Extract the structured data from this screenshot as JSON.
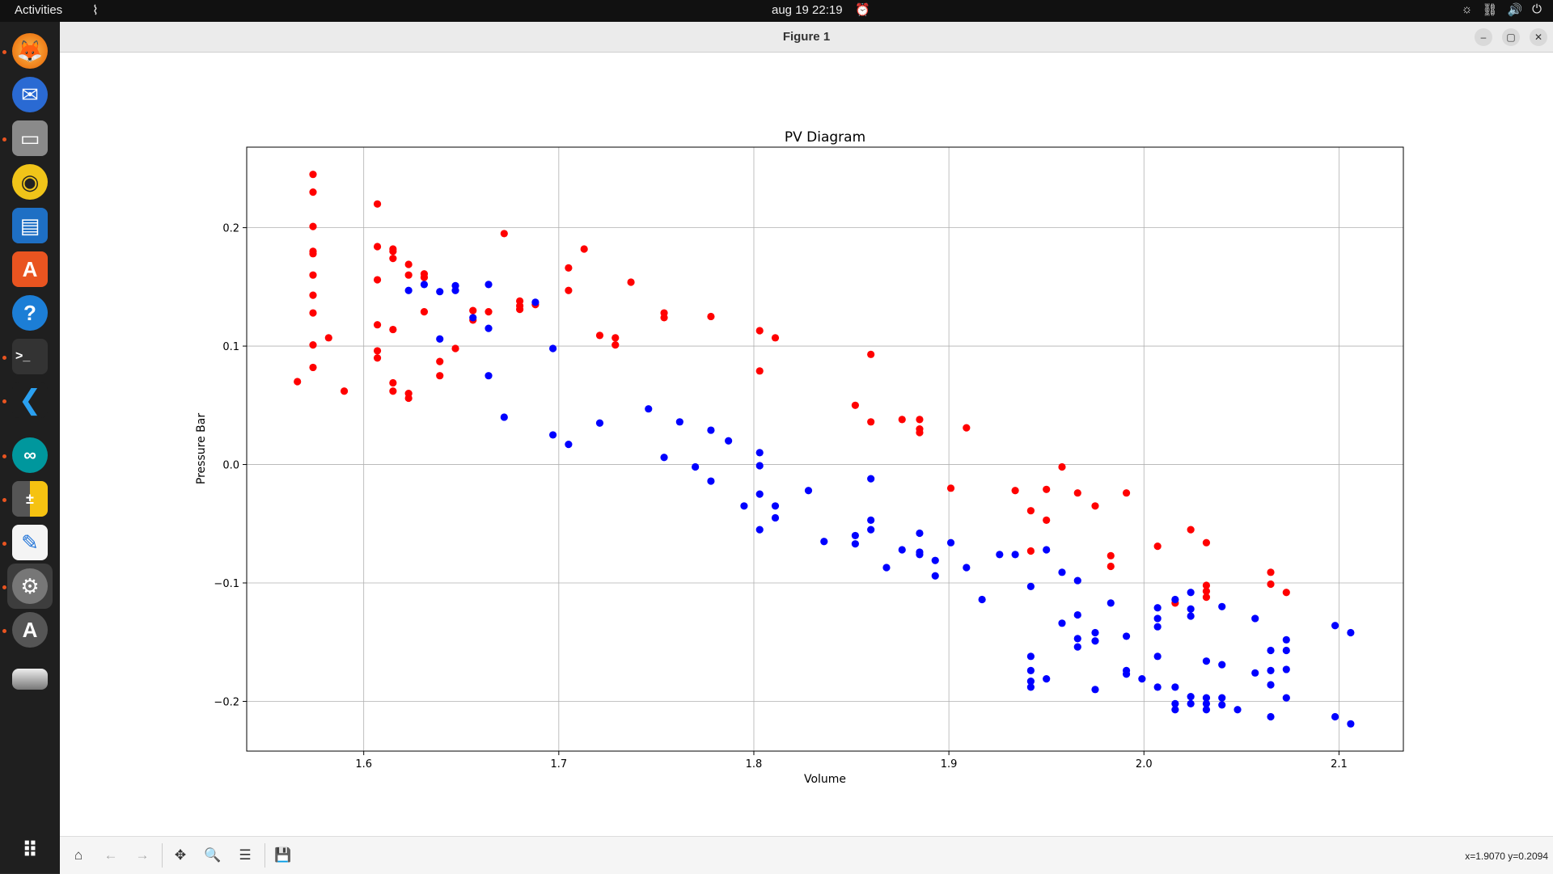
{
  "topbar": {
    "activities": "Activities",
    "clock": "aug 19  22:19"
  },
  "window": {
    "title": "Figure 1"
  },
  "statusbar": {
    "coords": "x=1.9070 y=0.2094"
  },
  "chart_data": {
    "type": "scatter",
    "title": "PV Diagram",
    "xlabel": "Volume",
    "ylabel": "Pressure Bar",
    "xlim": [
      1.54,
      2.133
    ],
    "ylim": [
      -0.242,
      0.268
    ],
    "grid": true,
    "xticks": [
      1.6,
      1.7,
      1.8,
      1.9,
      2.0,
      2.1
    ],
    "xtick_labels": [
      "1.6",
      "1.7",
      "1.8",
      "1.9",
      "2.0",
      "2.1"
    ],
    "yticks": [
      -0.2,
      -0.1,
      0.0,
      0.1,
      0.2
    ],
    "ytick_labels": [
      "−0.2",
      "−0.1",
      "0.0",
      "0.1",
      "0.2"
    ],
    "series": [
      {
        "color": "#ff0000",
        "points": [
          [
            1.566,
            0.07
          ],
          [
            1.574,
            0.245
          ],
          [
            1.574,
            0.23
          ],
          [
            1.574,
            0.201
          ],
          [
            1.574,
            0.18
          ],
          [
            1.574,
            0.178
          ],
          [
            1.574,
            0.16
          ],
          [
            1.574,
            0.143
          ],
          [
            1.574,
            0.128
          ],
          [
            1.574,
            0.101
          ],
          [
            1.574,
            0.082
          ],
          [
            1.582,
            0.107
          ],
          [
            1.59,
            0.062
          ],
          [
            1.607,
            0.22
          ],
          [
            1.607,
            0.184
          ],
          [
            1.607,
            0.156
          ],
          [
            1.607,
            0.118
          ],
          [
            1.607,
            0.096
          ],
          [
            1.607,
            0.09
          ],
          [
            1.615,
            0.182
          ],
          [
            1.615,
            0.18
          ],
          [
            1.615,
            0.174
          ],
          [
            1.615,
            0.114
          ],
          [
            1.615,
            0.069
          ],
          [
            1.615,
            0.062
          ],
          [
            1.623,
            0.169
          ],
          [
            1.623,
            0.16
          ],
          [
            1.623,
            0.06
          ],
          [
            1.623,
            0.056
          ],
          [
            1.631,
            0.161
          ],
          [
            1.631,
            0.158
          ],
          [
            1.631,
            0.129
          ],
          [
            1.639,
            0.087
          ],
          [
            1.639,
            0.075
          ],
          [
            1.647,
            0.098
          ],
          [
            1.656,
            0.13
          ],
          [
            1.656,
            0.122
          ],
          [
            1.664,
            0.129
          ],
          [
            1.672,
            0.195
          ],
          [
            1.68,
            0.138
          ],
          [
            1.68,
            0.134
          ],
          [
            1.68,
            0.131
          ],
          [
            1.688,
            0.135
          ],
          [
            1.705,
            0.166
          ],
          [
            1.705,
            0.147
          ],
          [
            1.713,
            0.182
          ],
          [
            1.721,
            0.109
          ],
          [
            1.729,
            0.107
          ],
          [
            1.729,
            0.101
          ],
          [
            1.737,
            0.154
          ],
          [
            1.754,
            0.128
          ],
          [
            1.754,
            0.124
          ],
          [
            1.778,
            0.125
          ],
          [
            1.803,
            0.113
          ],
          [
            1.803,
            0.079
          ],
          [
            1.811,
            0.107
          ],
          [
            1.852,
            0.05
          ],
          [
            1.86,
            0.093
          ],
          [
            1.86,
            0.036
          ],
          [
            1.876,
            0.038
          ],
          [
            1.885,
            0.038
          ],
          [
            1.885,
            0.03
          ],
          [
            1.885,
            0.027
          ],
          [
            1.901,
            -0.02
          ],
          [
            1.909,
            0.031
          ],
          [
            1.934,
            -0.022
          ],
          [
            1.942,
            -0.039
          ],
          [
            1.942,
            -0.073
          ],
          [
            1.95,
            -0.021
          ],
          [
            1.95,
            -0.047
          ],
          [
            1.958,
            -0.002
          ],
          [
            1.966,
            -0.024
          ],
          [
            1.975,
            -0.035
          ],
          [
            1.983,
            -0.077
          ],
          [
            1.983,
            -0.086
          ],
          [
            1.991,
            -0.024
          ],
          [
            2.007,
            -0.069
          ],
          [
            2.016,
            -0.117
          ],
          [
            2.024,
            -0.055
          ],
          [
            2.032,
            -0.066
          ],
          [
            2.032,
            -0.102
          ],
          [
            2.032,
            -0.107
          ],
          [
            2.032,
            -0.112
          ],
          [
            2.065,
            -0.091
          ],
          [
            2.065,
            -0.101
          ],
          [
            2.073,
            -0.108
          ]
        ]
      },
      {
        "color": "#0000ff",
        "points": [
          [
            1.623,
            0.147
          ],
          [
            1.631,
            0.152
          ],
          [
            1.639,
            0.106
          ],
          [
            1.639,
            0.146
          ],
          [
            1.647,
            0.151
          ],
          [
            1.647,
            0.147
          ],
          [
            1.656,
            0.124
          ],
          [
            1.664,
            0.152
          ],
          [
            1.664,
            0.115
          ],
          [
            1.664,
            0.075
          ],
          [
            1.672,
            0.04
          ],
          [
            1.688,
            0.137
          ],
          [
            1.697,
            0.098
          ],
          [
            1.697,
            0.025
          ],
          [
            1.705,
            0.017
          ],
          [
            1.721,
            0.035
          ],
          [
            1.746,
            0.047
          ],
          [
            1.754,
            0.006
          ],
          [
            1.762,
            0.036
          ],
          [
            1.77,
            -0.002
          ],
          [
            1.778,
            0.029
          ],
          [
            1.778,
            -0.014
          ],
          [
            1.787,
            0.02
          ],
          [
            1.795,
            -0.035
          ],
          [
            1.803,
            0.01
          ],
          [
            1.803,
            -0.001
          ],
          [
            1.803,
            -0.025
          ],
          [
            1.803,
            -0.055
          ],
          [
            1.811,
            -0.035
          ],
          [
            1.811,
            -0.045
          ],
          [
            1.828,
            -0.022
          ],
          [
            1.836,
            -0.065
          ],
          [
            1.852,
            -0.06
          ],
          [
            1.852,
            -0.067
          ],
          [
            1.86,
            -0.012
          ],
          [
            1.86,
            -0.047
          ],
          [
            1.86,
            -0.055
          ],
          [
            1.868,
            -0.087
          ],
          [
            1.876,
            -0.072
          ],
          [
            1.885,
            -0.058
          ],
          [
            1.885,
            -0.074
          ],
          [
            1.885,
            -0.076
          ],
          [
            1.893,
            -0.081
          ],
          [
            1.893,
            -0.094
          ],
          [
            1.901,
            -0.066
          ],
          [
            1.909,
            -0.087
          ],
          [
            1.917,
            -0.114
          ],
          [
            1.926,
            -0.076
          ],
          [
            1.934,
            -0.076
          ],
          [
            1.942,
            -0.103
          ],
          [
            1.942,
            -0.162
          ],
          [
            1.942,
            -0.174
          ],
          [
            1.942,
            -0.183
          ],
          [
            1.942,
            -0.188
          ],
          [
            1.95,
            -0.072
          ],
          [
            1.95,
            -0.181
          ],
          [
            1.958,
            -0.091
          ],
          [
            1.958,
            -0.134
          ],
          [
            1.966,
            -0.098
          ],
          [
            1.966,
            -0.127
          ],
          [
            1.966,
            -0.147
          ],
          [
            1.966,
            -0.154
          ],
          [
            1.975,
            -0.142
          ],
          [
            1.975,
            -0.149
          ],
          [
            1.975,
            -0.19
          ],
          [
            1.983,
            -0.117
          ],
          [
            1.991,
            -0.145
          ],
          [
            1.991,
            -0.174
          ],
          [
            1.991,
            -0.177
          ],
          [
            1.999,
            -0.181
          ],
          [
            2.007,
            -0.121
          ],
          [
            2.007,
            -0.13
          ],
          [
            2.007,
            -0.137
          ],
          [
            2.007,
            -0.162
          ],
          [
            2.007,
            -0.188
          ],
          [
            2.016,
            -0.114
          ],
          [
            2.016,
            -0.188
          ],
          [
            2.016,
            -0.202
          ],
          [
            2.016,
            -0.207
          ],
          [
            2.024,
            -0.108
          ],
          [
            2.024,
            -0.122
          ],
          [
            2.024,
            -0.128
          ],
          [
            2.024,
            -0.196
          ],
          [
            2.024,
            -0.202
          ],
          [
            2.032,
            -0.166
          ],
          [
            2.032,
            -0.197
          ],
          [
            2.032,
            -0.202
          ],
          [
            2.032,
            -0.207
          ],
          [
            2.04,
            -0.12
          ],
          [
            2.04,
            -0.169
          ],
          [
            2.04,
            -0.197
          ],
          [
            2.04,
            -0.203
          ],
          [
            2.048,
            -0.207
          ],
          [
            2.057,
            -0.13
          ],
          [
            2.057,
            -0.176
          ],
          [
            2.065,
            -0.157
          ],
          [
            2.065,
            -0.174
          ],
          [
            2.065,
            -0.186
          ],
          [
            2.065,
            -0.213
          ],
          [
            2.073,
            -0.148
          ],
          [
            2.073,
            -0.157
          ],
          [
            2.073,
            -0.173
          ],
          [
            2.073,
            -0.197
          ],
          [
            2.098,
            -0.136
          ],
          [
            2.098,
            -0.213
          ],
          [
            2.106,
            -0.142
          ],
          [
            2.106,
            -0.219
          ]
        ]
      }
    ]
  }
}
